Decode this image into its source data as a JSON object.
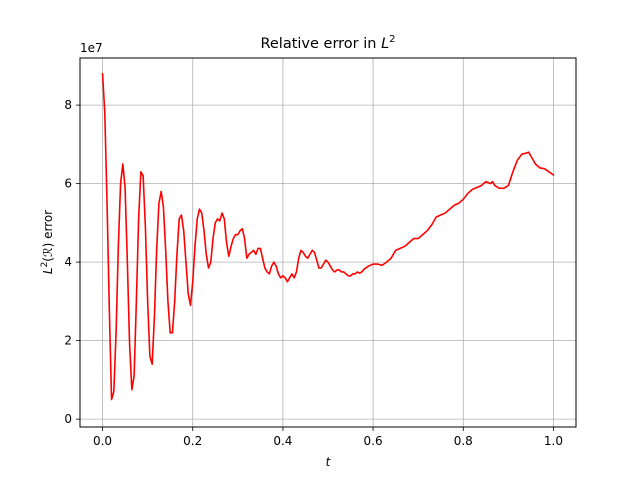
{
  "chart_data": {
    "type": "line",
    "title_prefix": "Relative error in ",
    "title_math": "L",
    "title_sup": "2",
    "xlabel": "t",
    "ylabel_math": "L",
    "ylabel_sup": "2",
    "ylabel_rest": "(ℛ) error",
    "offset_text": "1e7",
    "y_scale_factor": 10000000,
    "xlim": [
      -0.05,
      1.05
    ],
    "ylim": [
      -0.2,
      9.2
    ],
    "x_ticks": [
      0.0,
      0.2,
      0.4,
      0.6,
      0.8,
      1.0
    ],
    "x_tick_labels": [
      "0.0",
      "0.2",
      "0.4",
      "0.6",
      "0.8",
      "1.0"
    ],
    "y_ticks": [
      0,
      2,
      4,
      6,
      8
    ],
    "y_tick_labels": [
      "0",
      "2",
      "4",
      "6",
      "8"
    ],
    "grid": true,
    "series": [
      {
        "color": "#ff0000",
        "points": [
          [
            0.0,
            8.8
          ],
          [
            0.005,
            7.8
          ],
          [
            0.01,
            5.5
          ],
          [
            0.015,
            2.8
          ],
          [
            0.02,
            0.5
          ],
          [
            0.025,
            0.7
          ],
          [
            0.03,
            2.2
          ],
          [
            0.035,
            4.4
          ],
          [
            0.04,
            6.0
          ],
          [
            0.045,
            6.5
          ],
          [
            0.05,
            5.9
          ],
          [
            0.055,
            4.0
          ],
          [
            0.06,
            1.9
          ],
          [
            0.065,
            0.75
          ],
          [
            0.07,
            1.1
          ],
          [
            0.075,
            3.0
          ],
          [
            0.08,
            5.1
          ],
          [
            0.085,
            6.3
          ],
          [
            0.09,
            6.2
          ],
          [
            0.095,
            4.9
          ],
          [
            0.1,
            3.0
          ],
          [
            0.105,
            1.6
          ],
          [
            0.11,
            1.4
          ],
          [
            0.115,
            2.6
          ],
          [
            0.12,
            4.3
          ],
          [
            0.125,
            5.5
          ],
          [
            0.13,
            5.8
          ],
          [
            0.135,
            5.4
          ],
          [
            0.14,
            4.3
          ],
          [
            0.145,
            3.0
          ],
          [
            0.15,
            2.2
          ],
          [
            0.155,
            2.2
          ],
          [
            0.16,
            3.0
          ],
          [
            0.165,
            4.2
          ],
          [
            0.17,
            5.1
          ],
          [
            0.175,
            5.2
          ],
          [
            0.18,
            4.8
          ],
          [
            0.185,
            4.0
          ],
          [
            0.19,
            3.2
          ],
          [
            0.195,
            2.9
          ],
          [
            0.2,
            3.5
          ],
          [
            0.205,
            4.4
          ],
          [
            0.21,
            5.1
          ],
          [
            0.215,
            5.35
          ],
          [
            0.22,
            5.25
          ],
          [
            0.225,
            4.8
          ],
          [
            0.23,
            4.2
          ],
          [
            0.235,
            3.85
          ],
          [
            0.24,
            4.0
          ],
          [
            0.245,
            4.6
          ],
          [
            0.25,
            5.0
          ],
          [
            0.255,
            5.1
          ],
          [
            0.26,
            5.05
          ],
          [
            0.265,
            5.25
          ],
          [
            0.27,
            5.1
          ],
          [
            0.275,
            4.5
          ],
          [
            0.28,
            4.15
          ],
          [
            0.285,
            4.4
          ],
          [
            0.29,
            4.6
          ],
          [
            0.295,
            4.7
          ],
          [
            0.3,
            4.7
          ],
          [
            0.305,
            4.8
          ],
          [
            0.31,
            4.85
          ],
          [
            0.315,
            4.6
          ],
          [
            0.32,
            4.1
          ],
          [
            0.325,
            4.2
          ],
          [
            0.33,
            4.25
          ],
          [
            0.335,
            4.3
          ],
          [
            0.34,
            4.2
          ],
          [
            0.345,
            4.35
          ],
          [
            0.35,
            4.35
          ],
          [
            0.355,
            4.1
          ],
          [
            0.36,
            3.85
          ],
          [
            0.365,
            3.75
          ],
          [
            0.37,
            3.7
          ],
          [
            0.375,
            3.9
          ],
          [
            0.38,
            4.0
          ],
          [
            0.385,
            3.9
          ],
          [
            0.39,
            3.7
          ],
          [
            0.395,
            3.6
          ],
          [
            0.4,
            3.65
          ],
          [
            0.405,
            3.6
          ],
          [
            0.41,
            3.5
          ],
          [
            0.415,
            3.6
          ],
          [
            0.42,
            3.7
          ],
          [
            0.425,
            3.6
          ],
          [
            0.43,
            3.75
          ],
          [
            0.435,
            4.1
          ],
          [
            0.44,
            4.3
          ],
          [
            0.445,
            4.25
          ],
          [
            0.45,
            4.15
          ],
          [
            0.455,
            4.1
          ],
          [
            0.46,
            4.2
          ],
          [
            0.465,
            4.3
          ],
          [
            0.47,
            4.25
          ],
          [
            0.475,
            4.05
          ],
          [
            0.48,
            3.85
          ],
          [
            0.485,
            3.85
          ],
          [
            0.49,
            3.95
          ],
          [
            0.495,
            4.05
          ],
          [
            0.5,
            4.0
          ],
          [
            0.505,
            3.9
          ],
          [
            0.51,
            3.8
          ],
          [
            0.515,
            3.75
          ],
          [
            0.52,
            3.8
          ],
          [
            0.525,
            3.8
          ],
          [
            0.53,
            3.75
          ],
          [
            0.535,
            3.75
          ],
          [
            0.54,
            3.7
          ],
          [
            0.545,
            3.65
          ],
          [
            0.55,
            3.65
          ],
          [
            0.555,
            3.7
          ],
          [
            0.56,
            3.7
          ],
          [
            0.565,
            3.75
          ],
          [
            0.57,
            3.72
          ],
          [
            0.575,
            3.75
          ],
          [
            0.58,
            3.82
          ],
          [
            0.59,
            3.9
          ],
          [
            0.6,
            3.95
          ],
          [
            0.61,
            3.95
          ],
          [
            0.62,
            3.92
          ],
          [
            0.63,
            4.0
          ],
          [
            0.64,
            4.1
          ],
          [
            0.65,
            4.3
          ],
          [
            0.66,
            4.35
          ],
          [
            0.67,
            4.4
          ],
          [
            0.68,
            4.5
          ],
          [
            0.69,
            4.6
          ],
          [
            0.7,
            4.6
          ],
          [
            0.71,
            4.7
          ],
          [
            0.72,
            4.8
          ],
          [
            0.73,
            4.95
          ],
          [
            0.74,
            5.15
          ],
          [
            0.75,
            5.2
          ],
          [
            0.76,
            5.25
          ],
          [
            0.77,
            5.35
          ],
          [
            0.78,
            5.45
          ],
          [
            0.79,
            5.5
          ],
          [
            0.8,
            5.6
          ],
          [
            0.81,
            5.75
          ],
          [
            0.82,
            5.85
          ],
          [
            0.83,
            5.9
          ],
          [
            0.84,
            5.95
          ],
          [
            0.85,
            6.05
          ],
          [
            0.86,
            6.0
          ],
          [
            0.865,
            6.05
          ],
          [
            0.87,
            5.95
          ],
          [
            0.88,
            5.88
          ],
          [
            0.89,
            5.88
          ],
          [
            0.9,
            5.95
          ],
          [
            0.91,
            6.3
          ],
          [
            0.92,
            6.6
          ],
          [
            0.93,
            6.75
          ],
          [
            0.94,
            6.78
          ],
          [
            0.945,
            6.8
          ],
          [
            0.95,
            6.7
          ],
          [
            0.96,
            6.5
          ],
          [
            0.97,
            6.4
          ],
          [
            0.98,
            6.38
          ],
          [
            0.99,
            6.3
          ],
          [
            1.0,
            6.22
          ]
        ]
      }
    ]
  }
}
